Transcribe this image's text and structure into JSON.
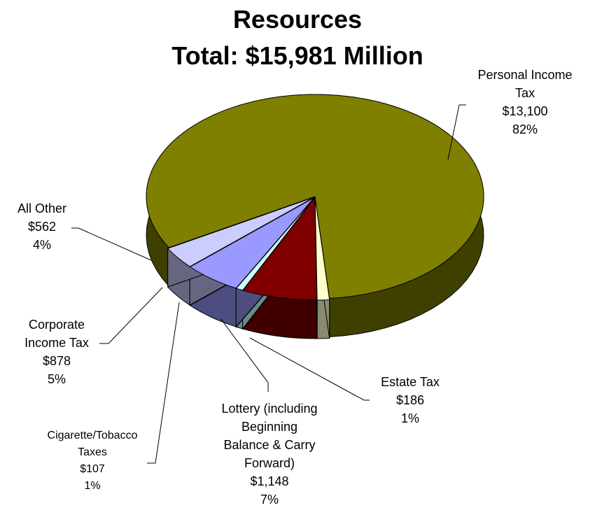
{
  "chart_data": {
    "type": "pie",
    "title": "Resources",
    "subtitle": "Total:  $15,981 Million",
    "slices": [
      {
        "key": "personal",
        "label_lines": [
          "Personal Income",
          "Tax"
        ],
        "value": 13100,
        "value_label": "$13,100",
        "percent": 82,
        "percent_label": "82%",
        "color_top": "#808000",
        "color_side": "#3f3f00"
      },
      {
        "key": "estate",
        "label_lines": [
          "Estate Tax"
        ],
        "value": 186,
        "value_label": "$186",
        "percent": 1,
        "percent_label": "1%",
        "color_top": "#ffffcc",
        "color_side": "#8a8a6c"
      },
      {
        "key": "lottery",
        "label_lines": [
          "Lottery (including",
          "Beginning",
          "Balance & Carry",
          "Forward)"
        ],
        "value": 1148,
        "value_label": "$1,148",
        "percent": 7,
        "percent_label": "7%",
        "color_top": "#800000",
        "color_side": "#400000"
      },
      {
        "key": "cigarette",
        "label_lines": [
          "Cigarette/Tobacco",
          "Taxes"
        ],
        "value": 107,
        "value_label": "$107",
        "percent": 1,
        "percent_label": "1%",
        "color_top": "#ccffff",
        "color_side": "#6c8a8a"
      },
      {
        "key": "corporate",
        "label_lines": [
          "Corporate",
          "Income Tax"
        ],
        "value": 878,
        "value_label": "$878",
        "percent": 5,
        "percent_label": "5%",
        "color_top": "#9999ff",
        "color_side": "#4d4d80"
      },
      {
        "key": "other",
        "label_lines": [
          "All Other"
        ],
        "value": 562,
        "value_label": "$562",
        "percent": 4,
        "percent_label": "4%",
        "color_top": "#ccccff",
        "color_side": "#666680"
      }
    ]
  }
}
